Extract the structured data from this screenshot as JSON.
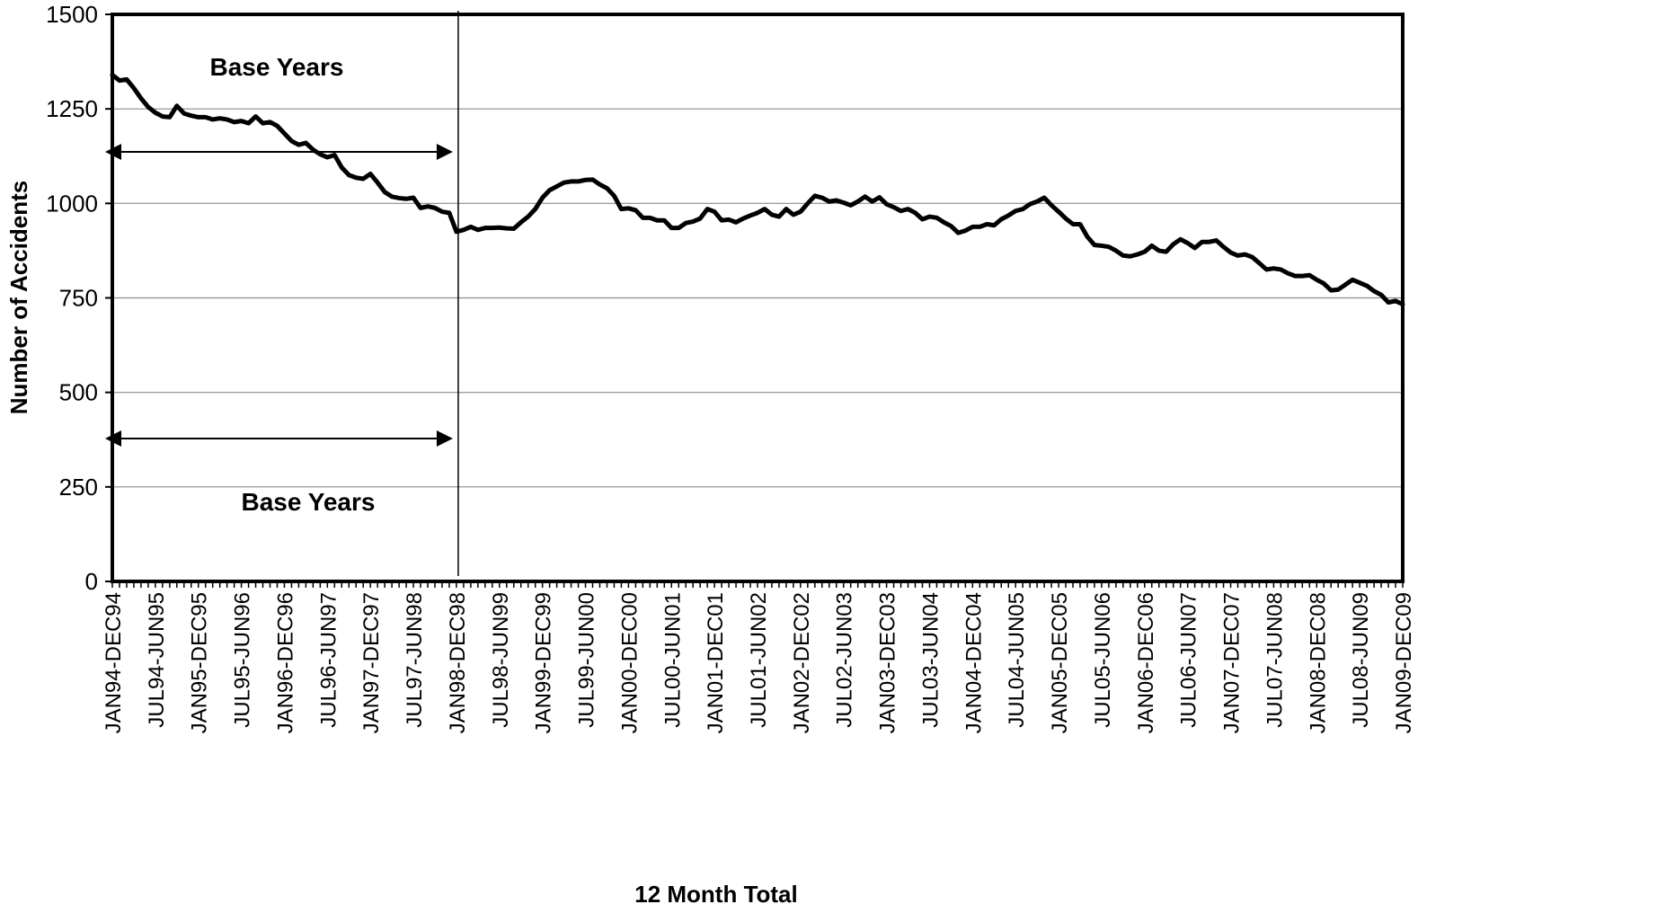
{
  "chart_data": {
    "type": "line",
    "title": "",
    "xlabel": "12 Month Total",
    "ylabel": "Number of Accidents",
    "ylim": [
      0,
      1500
    ],
    "yticks": [
      0,
      250,
      500,
      750,
      1000,
      1250,
      1500
    ],
    "grid": "horizontal",
    "x_tick_labels": [
      "JAN94-DEC94",
      "JUL94-JUN95",
      "JAN95-DEC95",
      "JUL95-JUN96",
      "JAN96-DEC96",
      "JUL96-JUN97",
      "JAN97-DEC97",
      "JUL97-JUN98",
      "JAN98-DEC98",
      "JUL98-JUN99",
      "JAN99-DEC99",
      "JUL99-JUN00",
      "JAN00-DEC00",
      "JUL00-JUN01",
      "JAN01-DEC01",
      "JUL01-JUN02",
      "JAN02-DEC02",
      "JUL02-JUN03",
      "JAN03-DEC03",
      "JUL03-JUN04",
      "JAN04-DEC04",
      "JUL04-JUN05",
      "JAN05-DEC05",
      "JUL05-JUN06",
      "JAN06-DEC06",
      "JUL06-JUN07",
      "JAN07-DEC07",
      "JUL07-JUN08",
      "JAN08-DEC08",
      "JUL08-JUN09",
      "JAN09-DEC09"
    ],
    "x_tick_interval_months": 6,
    "series": [
      {
        "values": [
          1340,
          1325,
          1328,
          1305,
          1278,
          1255,
          1240,
          1230,
          1228,
          1258,
          1238,
          1232,
          1228,
          1228,
          1222,
          1225,
          1222,
          1215,
          1218,
          1212,
          1230,
          1212,
          1215,
          1205,
          1185,
          1165,
          1155,
          1160,
          1142,
          1130,
          1122,
          1128,
          1095,
          1075,
          1068,
          1065,
          1078,
          1055,
          1030,
          1018,
          1014,
          1012,
          1015,
          988,
          992,
          988,
          978,
          975,
          925,
          930,
          938,
          930,
          935,
          935,
          936,
          934,
          933,
          950,
          965,
          985,
          1015,
          1035,
          1045,
          1055,
          1058,
          1058,
          1062,
          1063,
          1050,
          1040,
          1020,
          985,
          987,
          982,
          962,
          962,
          955,
          955,
          935,
          935,
          948,
          952,
          960,
          985,
          978,
          955,
          957,
          950,
          960,
          968,
          975,
          985,
          970,
          965,
          985,
          970,
          978,
          1000,
          1020,
          1015,
          1005,
          1008,
          1002,
          995,
          1005,
          1018,
          1005,
          1016,
          998,
          990,
          980,
          985,
          975,
          958,
          965,
          962,
          950,
          940,
          922,
          928,
          938,
          938,
          945,
          942,
          958,
          968,
          980,
          985,
          998,
          1005,
          1015,
          995,
          978,
          960,
          945,
          945,
          912,
          890,
          888,
          885,
          875,
          862,
          860,
          865,
          872,
          888,
          875,
          872,
          892,
          905,
          895,
          882,
          898,
          898,
          902,
          885,
          870,
          862,
          865,
          858,
          842,
          825,
          828,
          825,
          815,
          808,
          808,
          810,
          798,
          788,
          770,
          772,
          785,
          798,
          790,
          782,
          768,
          758,
          738,
          742,
          733
        ]
      }
    ],
    "annotations": [
      {
        "text": "Base Years",
        "position": "top"
      },
      {
        "text": "Base Years",
        "position": "bottom"
      }
    ],
    "marker_line_at": "JAN98-DEC98"
  }
}
